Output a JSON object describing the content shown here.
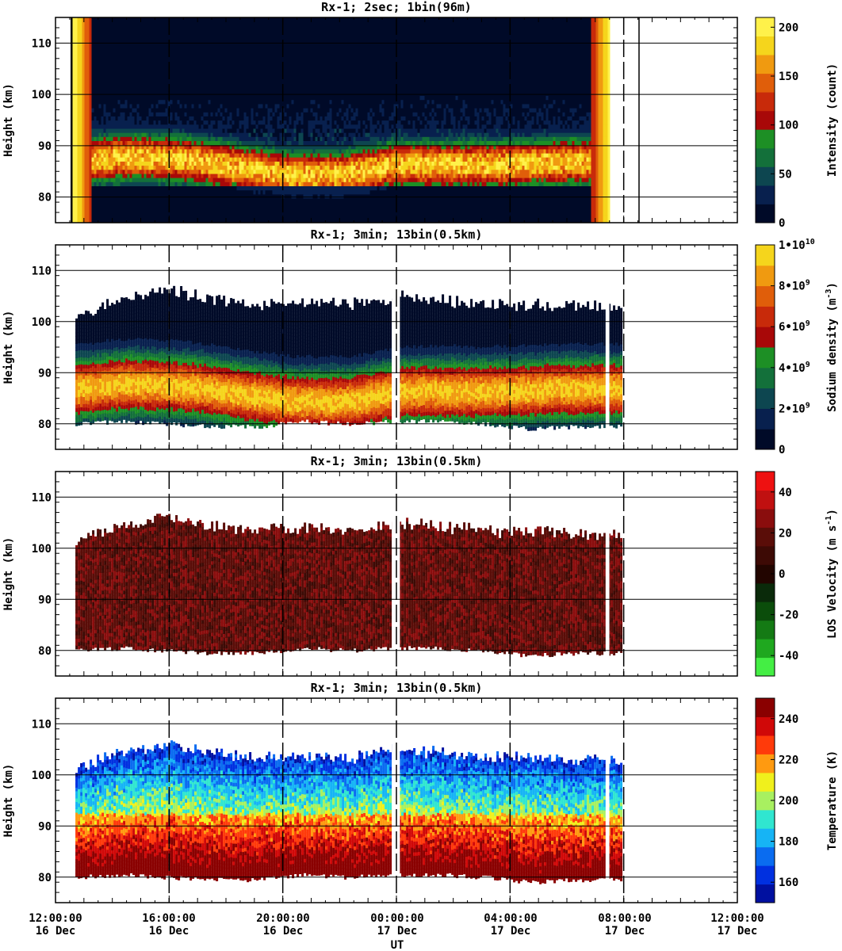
{
  "chart_data": {
    "type": "heatmap",
    "shared": {
      "x_ticks_hours": [
        0,
        4,
        8,
        12,
        16,
        20,
        24
      ],
      "x_tick_labels": [
        {
          "time": "12:00:00",
          "date": "16 Dec"
        },
        {
          "time": "16:00:00",
          "date": "16 Dec"
        },
        {
          "time": "20:00:00",
          "date": "16 Dec"
        },
        {
          "time": "00:00:00",
          "date": "17 Dec"
        },
        {
          "time": "04:00:00",
          "date": "17 Dec"
        },
        {
          "time": "08:00:00",
          "date": "17 Dec"
        },
        {
          "time": "12:00:00",
          "date": "17 Dec"
        }
      ],
      "xlabel": "UT",
      "xlim_hours_from_start": [
        0,
        24
      ],
      "ylabel": "Height (km)",
      "ylim": [
        75,
        115
      ],
      "y_ticks": [
        80,
        90,
        100,
        110
      ],
      "dashed_markers_hours": [
        4,
        8,
        12,
        16,
        20
      ]
    },
    "panels": [
      {
        "id": "intensity",
        "title": "Rx-1;  2sec; 1bin(96m)",
        "colorbar_label": "Intensity (count)",
        "colorbar_ticks": [
          "0",
          "50",
          "100",
          "150",
          "200"
        ],
        "colorbar_tick_values": [
          0,
          50,
          100,
          150,
          200
        ],
        "color_range": [
          0,
          210
        ],
        "colors": [
          "#000a28",
          "#08204e",
          "#0d4650",
          "#13703a",
          "#1d8f25",
          "#a80808",
          "#c82a0a",
          "#e05e0a",
          "#f09a10",
          "#f5d51c",
          "#fff14a"
        ],
        "data_start_hour": 0.6,
        "data_end_hour": 19.5,
        "layer_peak_km": [
          86.5,
          87.5,
          87,
          85.5,
          84,
          84,
          86,
          86,
          86,
          86.5,
          86.5
        ]
      },
      {
        "id": "sodium",
        "title": "Rx-1; 3min; 13bin(0.5km)",
        "colorbar_label": "Sodium density (m-3)",
        "colorbar_ticks": [
          "0",
          "2•109",
          "4•109",
          "6•109",
          "8•109",
          "1•1010"
        ],
        "colorbar_tick_values": [
          0,
          2000000000.0,
          4000000000.0,
          6000000000.0,
          8000000000.0,
          10000000000.0
        ],
        "color_range": [
          0,
          10000000000.0
        ],
        "colors": [
          "#000a28",
          "#08204e",
          "#0d4650",
          "#13703a",
          "#1d8f25",
          "#a80808",
          "#c82a0a",
          "#e05e0a",
          "#f09a10",
          "#f5d51c"
        ],
        "data_start_hour": 0.7,
        "data_end_hour": 19.9,
        "layer_peak_km": [
          86.5,
          87.5,
          87,
          85.5,
          84,
          84,
          86,
          86,
          86,
          86.5,
          86.5
        ]
      },
      {
        "id": "velocity",
        "title": "Rx-1; 3min; 13bin(0.5km)",
        "colorbar_label": "LOS Velocity (m s-1)",
        "colorbar_ticks": [
          "-40",
          "-20",
          "0",
          "20",
          "40"
        ],
        "colorbar_tick_values": [
          -40,
          -20,
          0,
          20,
          40
        ],
        "color_range": [
          -50,
          50
        ],
        "colors": [
          "#44ee44",
          "#1fa81f",
          "#147a14",
          "#0b4d0b",
          "#0a2a0a",
          "#220500",
          "#3d0a05",
          "#5a0d08",
          "#8a0d0d",
          "#c01010",
          "#ee1111"
        ],
        "data_start_hour": 0.7,
        "data_end_hour": 19.9
      },
      {
        "id": "temperature",
        "title": "Rx-1; 3min; 13bin(0.5km)",
        "colorbar_label": "Temperature (K)",
        "colorbar_ticks": [
          "160",
          "180",
          "200",
          "220",
          "240"
        ],
        "colorbar_tick_values": [
          160,
          180,
          200,
          220,
          240
        ],
        "color_range": [
          150,
          250
        ],
        "colors": [
          "#0010a0",
          "#0030e0",
          "#0a6cf0",
          "#16b4f5",
          "#30e6d0",
          "#a8f060",
          "#f0f01c",
          "#ff9a10",
          "#ff3a0a",
          "#d00808",
          "#8a0000"
        ],
        "data_start_hour": 0.7,
        "data_end_hour": 19.9,
        "warm_bottom_km": 92
      }
    ],
    "data_top_km_profile": [
      101,
      104,
      106,
      104,
      103,
      103.5,
      103,
      104.5,
      104,
      103,
      103,
      102.5,
      102.5
    ],
    "data_bottom_km_profile": [
      80,
      80.5,
      80,
      79.5,
      79.5,
      80.5,
      80,
      80.5,
      80.5,
      80,
      79,
      79.5,
      79.5
    ]
  }
}
